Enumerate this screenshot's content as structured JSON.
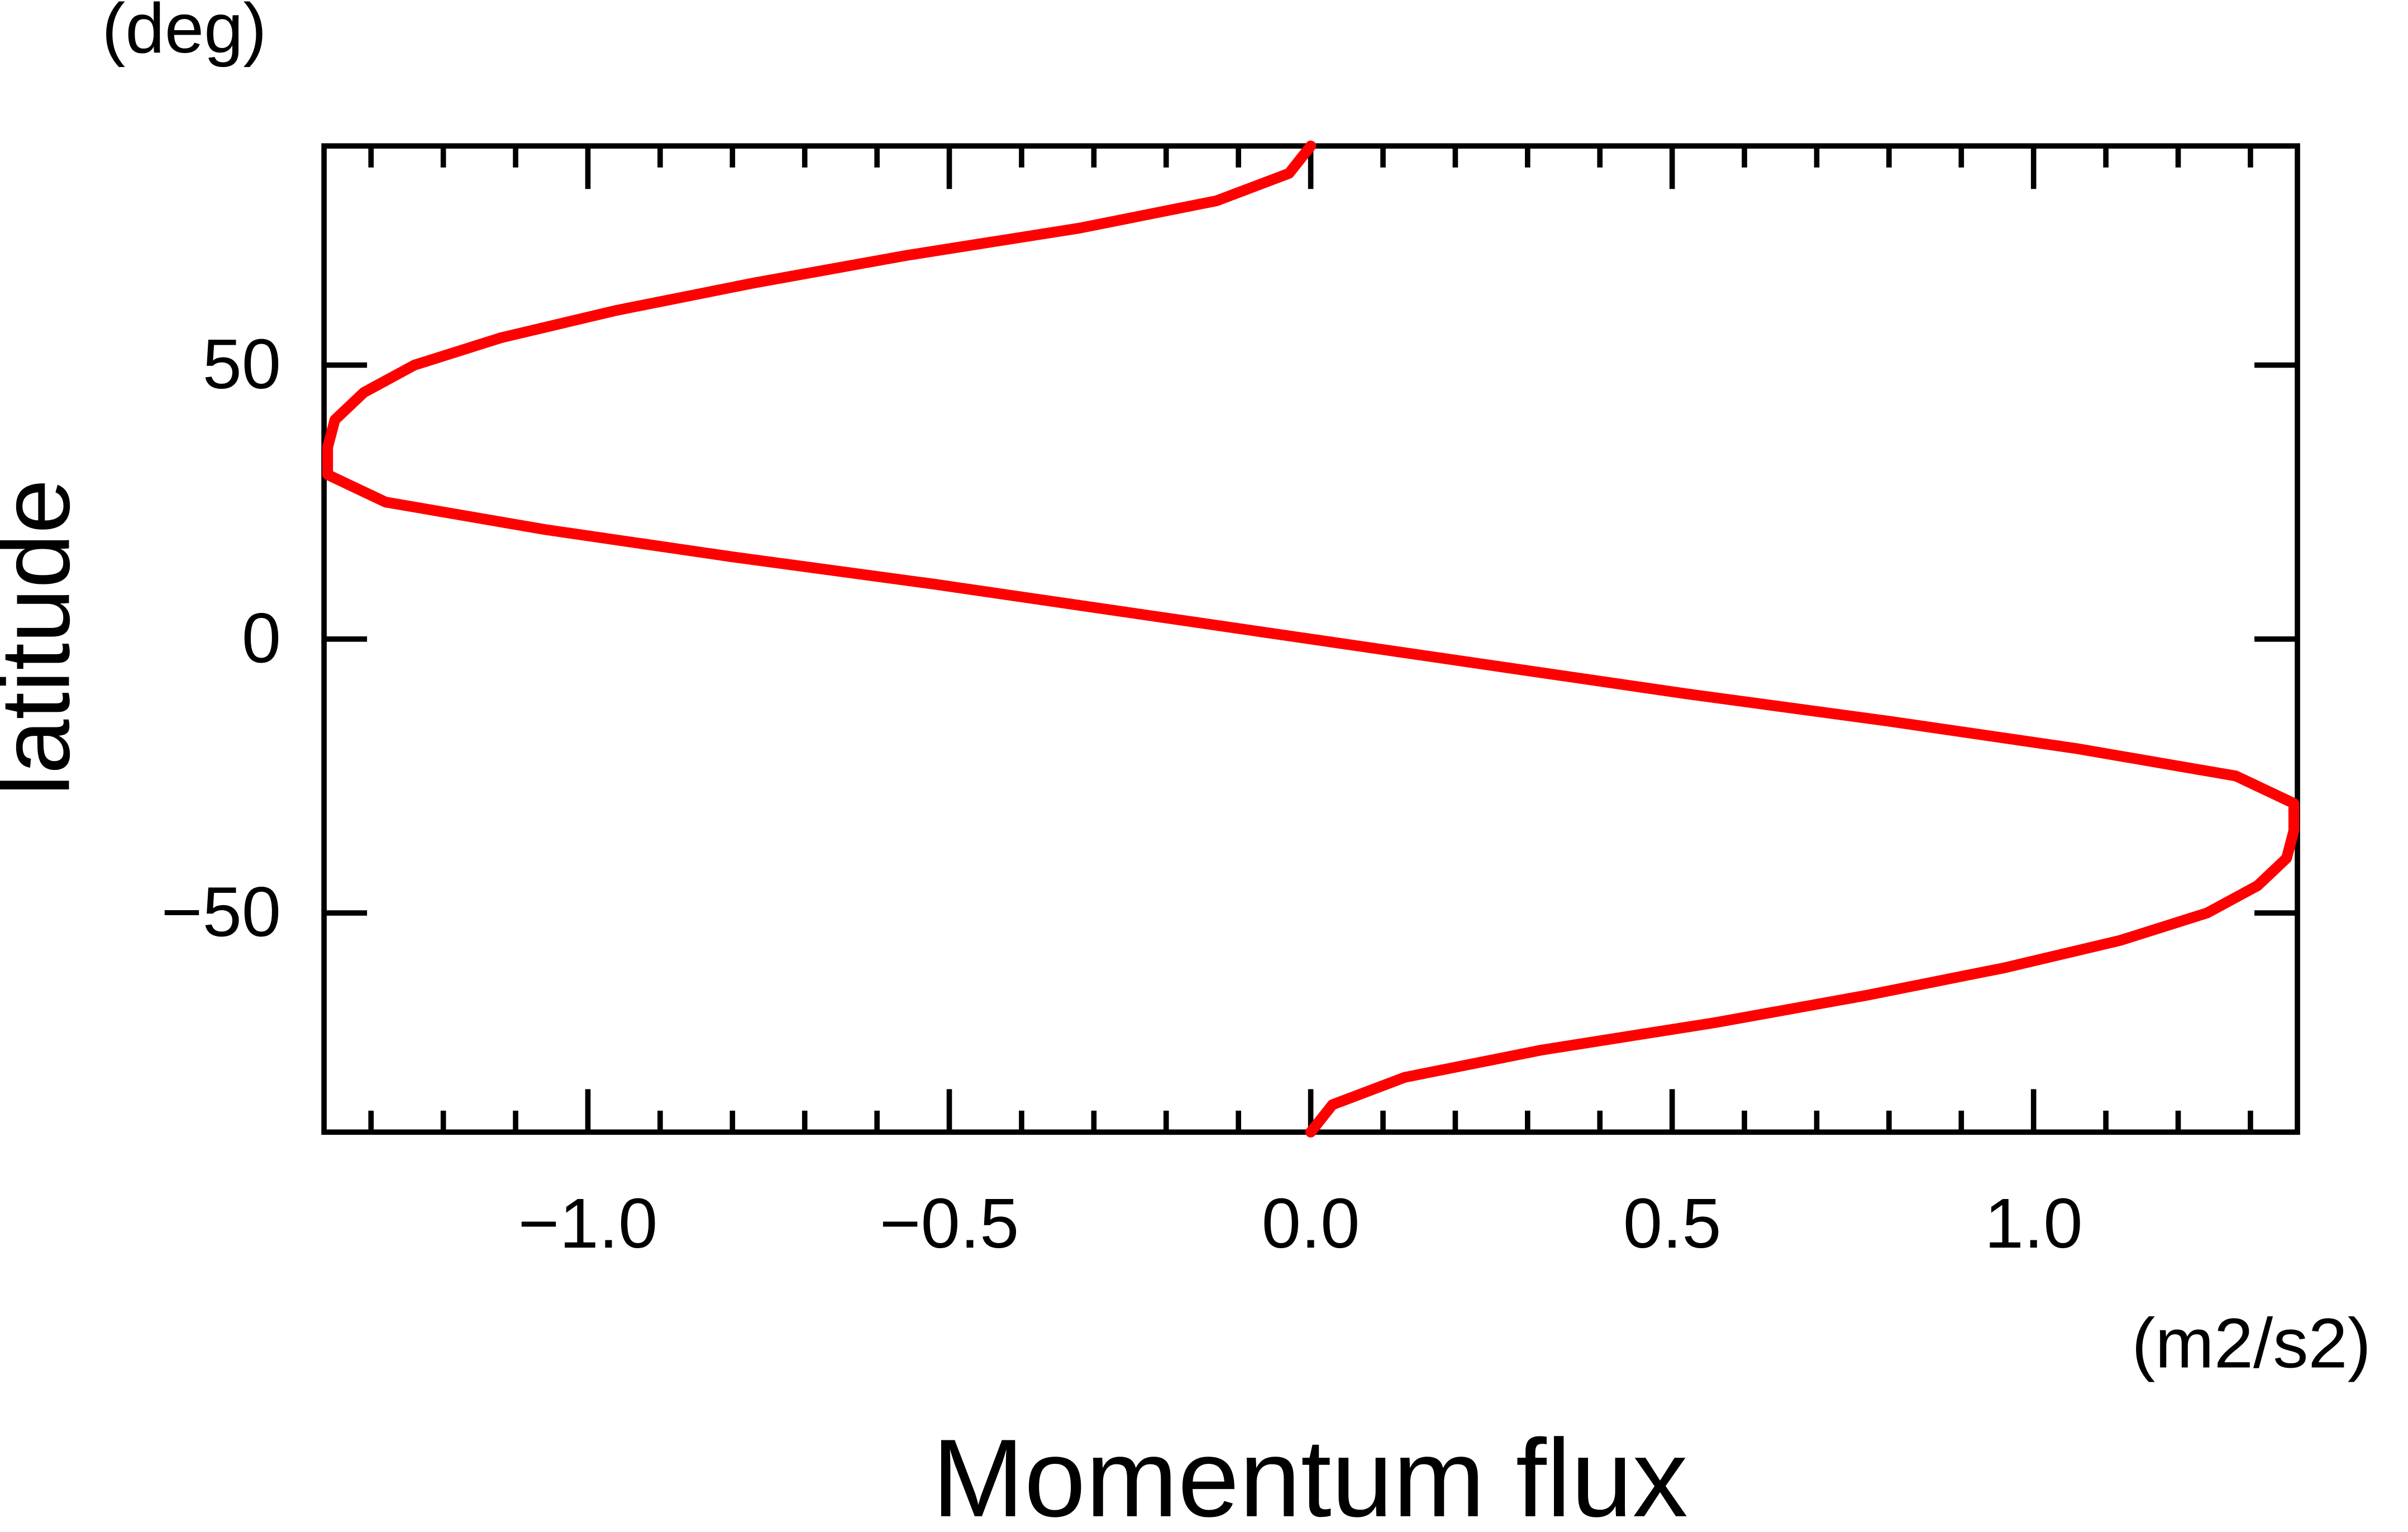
{
  "chart_data": {
    "type": "line",
    "x_label": "Momentum flux",
    "x_unit": "(m2/s2)",
    "y_label": "latitude",
    "y_unit": "(deg)",
    "y": [
      90,
      85,
      80,
      75,
      70,
      65,
      60,
      55,
      50,
      45,
      40,
      35,
      30,
      25,
      20,
      15,
      10,
      5,
      0,
      -5,
      -10,
      -15,
      -20,
      -25,
      -30,
      -35,
      -40,
      -45,
      -50,
      -55,
      -60,
      -65,
      -70,
      -75,
      -80,
      -85,
      -90
    ],
    "series": [
      {
        "color": "#ff0000",
        "values": [
          0,
          -0.03,
          -0.13,
          -0.32,
          -0.56,
          -0.77,
          -0.96,
          -1.12,
          -1.24,
          -1.31,
          -1.35,
          -1.36,
          -1.36,
          -1.28,
          -1.06,
          -0.8,
          -0.52,
          -0.26,
          0,
          0.26,
          0.52,
          0.8,
          1.06,
          1.28,
          1.36,
          1.36,
          1.35,
          1.31,
          1.24,
          1.12,
          0.96,
          0.77,
          0.56,
          0.32,
          0.13,
          0.03,
          0
        ]
      }
    ],
    "xlim": [
      -1.365,
      1.365
    ],
    "ylim": [
      -90,
      90
    ],
    "xticks": [
      {
        "value": -1,
        "label": "−1.0"
      },
      {
        "value": -0.5,
        "label": "−0.5"
      },
      {
        "value": 0,
        "label": "0.0"
      },
      0.5,
      {
        "value": 1,
        "label": "1.0"
      }
    ],
    "xminorticks": [
      -1.3,
      -1.2,
      -1.1,
      -0.9,
      -0.8,
      -0.7,
      -0.6,
      -0.4,
      -0.3,
      -0.2,
      -0.1,
      0.1,
      0.2,
      0.3,
      0.4,
      0.6,
      0.7,
      0.8,
      0.9,
      1.1,
      1.2,
      1.3
    ],
    "yticks": [
      {
        "value": -50,
        "label": "−50"
      },
      0,
      50
    ],
    "grid": false
  }
}
